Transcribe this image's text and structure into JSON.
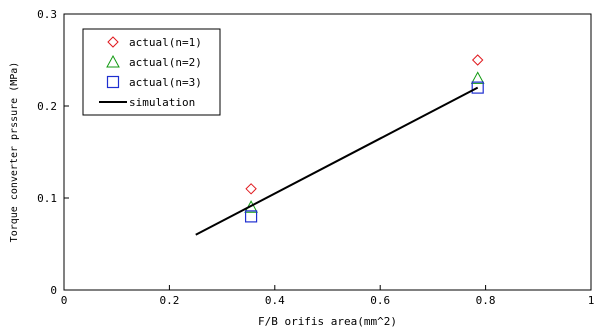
{
  "chart_data": {
    "type": "scatter",
    "title": "",
    "xlabel": "F/B orifis area(mm^2)",
    "ylabel": "Torque converter prssure (MPa)",
    "xlim": [
      0,
      1
    ],
    "ylim": [
      0,
      0.3
    ],
    "x_ticks": [
      "0",
      "0.2",
      "0.4",
      "0.6",
      "0.8",
      "1"
    ],
    "y_ticks": [
      "0",
      "0.1",
      "0.2",
      "0.3"
    ],
    "grid": false,
    "legend_position": "top-left",
    "series": [
      {
        "name": "actual(n=1)",
        "marker": "diamond",
        "color": "#e0191e",
        "points": [
          {
            "x": 0.355,
            "y": 0.11
          },
          {
            "x": 0.785,
            "y": 0.25
          }
        ]
      },
      {
        "name": "actual(n=2)",
        "marker": "triangle",
        "color": "#119a11",
        "points": [
          {
            "x": 0.355,
            "y": 0.09
          },
          {
            "x": 0.785,
            "y": 0.23
          }
        ]
      },
      {
        "name": "actual(n=3)",
        "marker": "square",
        "color": "#1f2fd0",
        "points": [
          {
            "x": 0.355,
            "y": 0.08
          },
          {
            "x": 0.785,
            "y": 0.22
          }
        ]
      },
      {
        "name": "simulation",
        "marker": "line",
        "color": "#000000",
        "points": [
          {
            "x": 0.25,
            "y": 0.06
          },
          {
            "x": 0.785,
            "y": 0.22
          }
        ]
      }
    ]
  }
}
